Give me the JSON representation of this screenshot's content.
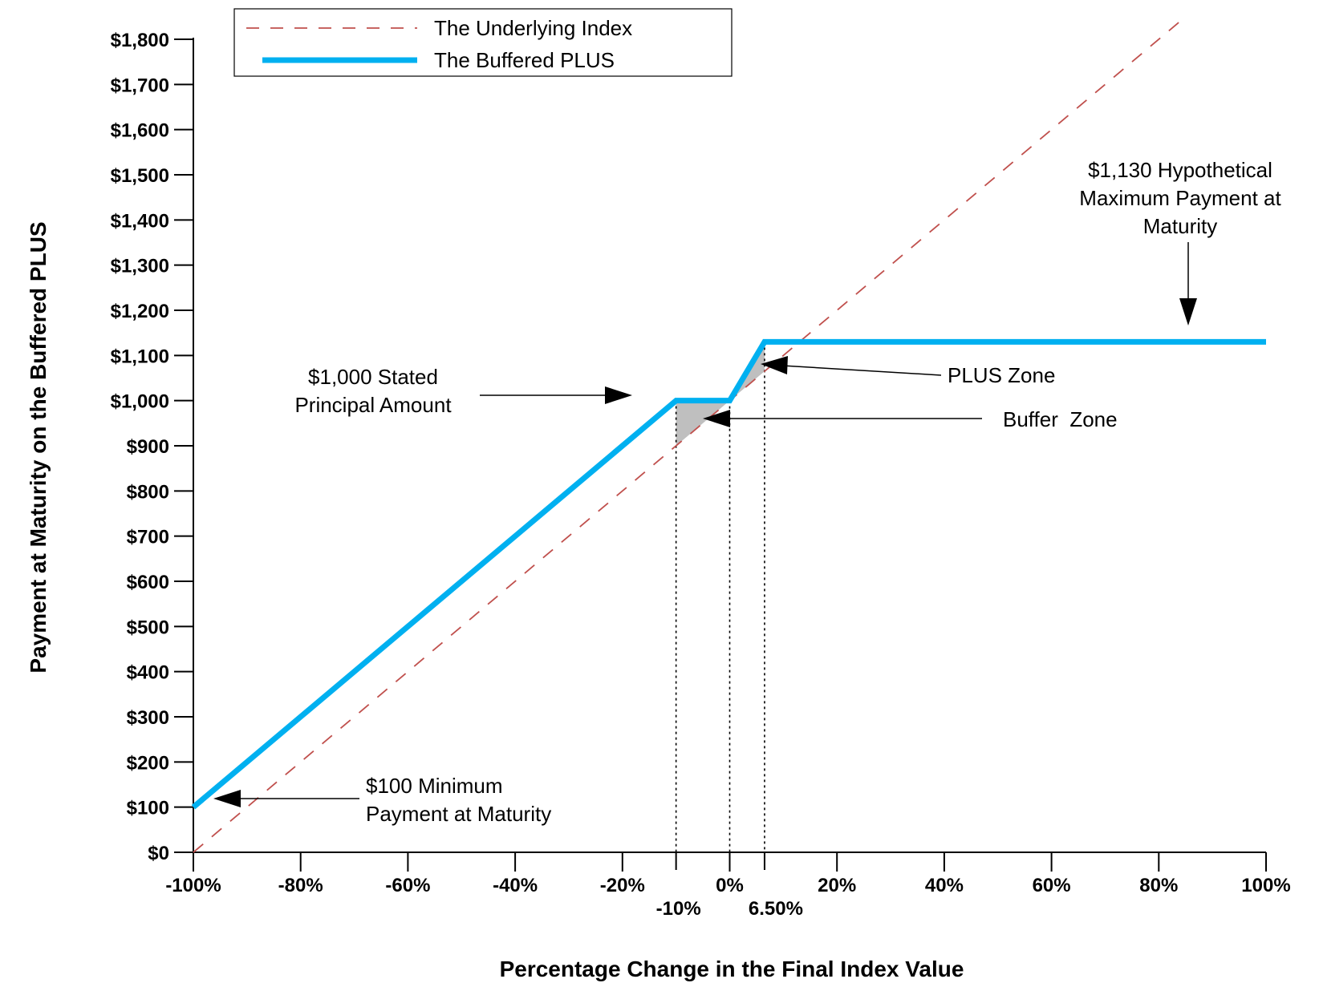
{
  "chart_data": {
    "type": "line",
    "title": "",
    "xlabel": "Percentage Change in the Final Index Value",
    "ylabel": "Payment at Maturity on the Buffered PLUS",
    "xlim": [
      -100,
      100
    ],
    "ylim": [
      0,
      1800
    ],
    "x_ticks": [
      -100,
      -80,
      -60,
      -40,
      -20,
      0,
      20,
      40,
      60,
      80,
      100
    ],
    "x_tick_labels": [
      "-100%",
      "-80%",
      "-60%",
      "-40%",
      "-20%",
      "0%",
      "20%",
      "40%",
      "60%",
      "80%",
      "100%"
    ],
    "y_ticks": [
      0,
      100,
      200,
      300,
      400,
      500,
      600,
      700,
      800,
      900,
      1000,
      1100,
      1200,
      1300,
      1400,
      1500,
      1600,
      1700,
      1800
    ],
    "y_tick_labels": [
      "$0",
      "$100",
      "$200",
      "$300",
      "$400",
      "$500",
      "$600",
      "$700",
      "$800",
      "$900",
      "$1,000",
      "$1,100",
      "$1,200",
      "$1,300",
      "$1,400",
      "$1,500",
      "$1,600",
      "$1,700",
      "$1,800"
    ],
    "special_ticks": [
      {
        "x": -10,
        "label": "-10%"
      },
      {
        "x": 6.5,
        "label": "6.50%"
      }
    ],
    "series": [
      {
        "name": "The Underlying Index",
        "color": "#c0504d",
        "style": "dashed",
        "x": [
          -100,
          85
        ],
        "y": [
          0,
          1850
        ]
      },
      {
        "name": "The Buffered PLUS",
        "color": "#00b0f0",
        "style": "solid",
        "x": [
          -100,
          -10,
          0,
          6.5,
          100
        ],
        "y": [
          100,
          1000,
          1000,
          1130,
          1130
        ]
      }
    ],
    "legend": {
      "position": "top-left",
      "entries": [
        "The Underlying Index",
        "The Buffered PLUS"
      ]
    },
    "shaded_regions": [
      {
        "name": "Buffer Zone",
        "color": "#bfbfbf",
        "points": [
          [
            -10,
            1000
          ],
          [
            0,
            1000
          ],
          [
            -10,
            900
          ]
        ]
      },
      {
        "name": "PLUS Zone",
        "color": "#bfbfbf",
        "points": [
          [
            0,
            1000
          ],
          [
            6.5,
            1130
          ],
          [
            6.5,
            1065
          ]
        ]
      }
    ],
    "annotations": [
      {
        "id": "stated-principal",
        "lines": [
          "$1,000 Stated",
          "Principal Amount"
        ]
      },
      {
        "id": "plus-zone",
        "lines": [
          "PLUS Zone"
        ]
      },
      {
        "id": "buffer-zone",
        "lines": [
          "Buffer  Zone"
        ]
      },
      {
        "id": "hypothetical-max",
        "lines": [
          "$1,130 Hypothetical",
          "Maximum Payment at",
          "Maturity"
        ]
      },
      {
        "id": "minimum-payment",
        "lines": [
          "$100 Minimum",
          "Payment at Maturity"
        ]
      }
    ],
    "grid": false
  }
}
